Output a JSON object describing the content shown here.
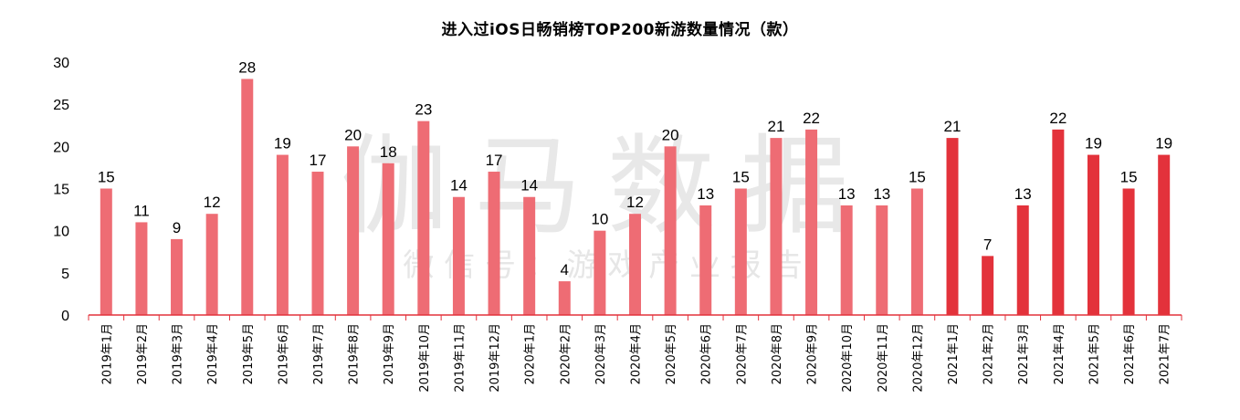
{
  "chart_data": {
    "type": "bar",
    "title": "进入过iOS日畅销榜TOP200新游数量情况（款）",
    "xlabel": "",
    "ylabel": "",
    "ylim": [
      0,
      30
    ],
    "yticks": [
      "0",
      "5",
      "10",
      "15",
      "20",
      "25",
      "30"
    ],
    "grid": false,
    "categories": [
      "2019年1月",
      "2019年2月",
      "2019年3月",
      "2019年4月",
      "2019年5月",
      "2019年6月",
      "2019年7月",
      "2019年8月",
      "2019年9月",
      "2019年10月",
      "2019年11月",
      "2019年12月",
      "2020年1月",
      "2020年2月",
      "2020年3月",
      "2020年4月",
      "2020年5月",
      "2020年6月",
      "2020年7月",
      "2020年8月",
      "2020年9月",
      "2020年10月",
      "2020年11月",
      "2020年12月",
      "2021年1月",
      "2021年2月",
      "2021年3月",
      "2021年4月",
      "2021年5月",
      "2021年6月",
      "2021年7月"
    ],
    "values": [
      15,
      11,
      9,
      12,
      28,
      19,
      17,
      20,
      18,
      23,
      14,
      17,
      14,
      4,
      10,
      12,
      20,
      13,
      15,
      21,
      22,
      13,
      13,
      15,
      21,
      7,
      13,
      22,
      19,
      15,
      19
    ],
    "colors": {
      "earlier_bars": "#ee6c74",
      "year_2021_bars": "#e3323b",
      "axis_line": "#e3323b"
    }
  },
  "watermark": {
    "main": "伽马数据",
    "sub": "微 信 号 ： 游 戏 产 业 报 告"
  }
}
